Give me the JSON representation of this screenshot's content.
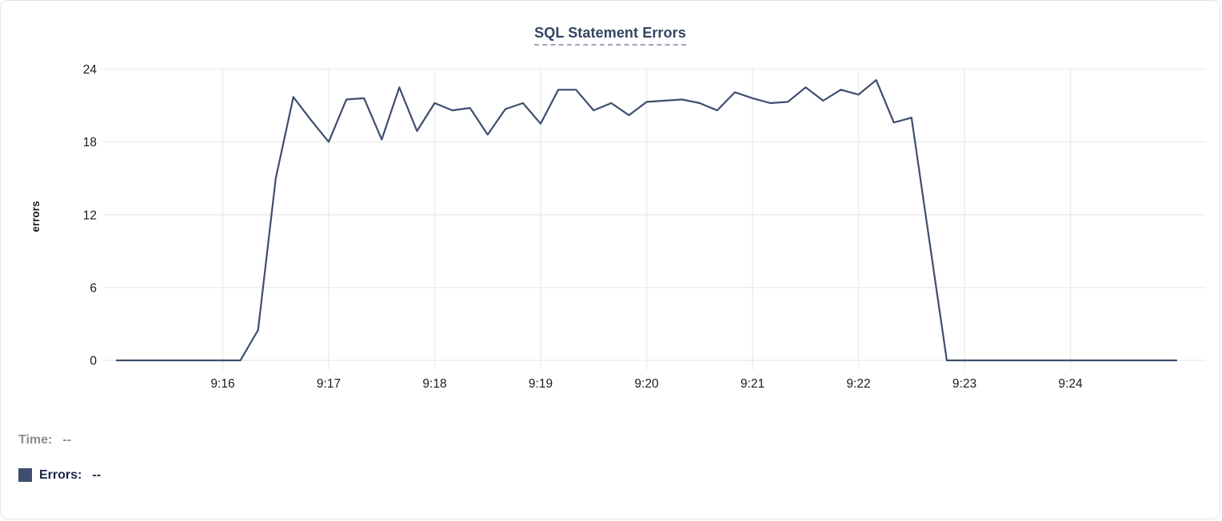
{
  "card": {
    "title": "SQL Statement Errors"
  },
  "tooltip": {
    "time_label": "Time:",
    "time_value": "--",
    "errors_label": "Errors:",
    "errors_value": "--"
  },
  "colors": {
    "line": "#3E4E6E",
    "title": "#344563",
    "title_underline": "#9AA5BA",
    "grid": "#ECECEC",
    "axis_text": "#1C1C1C",
    "tooltip_time": "#8D8D8D",
    "tooltip_errors": "#17264C",
    "card_border": "#E2E4E8",
    "background": "#FFFFFF"
  },
  "chart_data": {
    "type": "line",
    "title": "SQL Statement Errors",
    "xlabel": "",
    "ylabel": "errors",
    "ylim": [
      0,
      24
    ],
    "y_ticks": [
      0,
      6,
      12,
      18,
      24
    ],
    "x_tick_labels": [
      "9:16",
      "9:17",
      "9:18",
      "9:19",
      "9:20",
      "9:21",
      "9:22",
      "9:23",
      "9:24"
    ],
    "x_range": [
      "9:15:00",
      "9:25:00"
    ],
    "interval_seconds": 10,
    "grid": true,
    "legend_position": "bottom-left",
    "x": [
      "9:15:00",
      "9:15:10",
      "9:15:20",
      "9:15:30",
      "9:15:40",
      "9:15:50",
      "9:16:00",
      "9:16:10",
      "9:16:20",
      "9:16:30",
      "9:16:40",
      "9:16:50",
      "9:17:00",
      "9:17:10",
      "9:17:20",
      "9:17:30",
      "9:17:40",
      "9:17:50",
      "9:18:00",
      "9:18:10",
      "9:18:20",
      "9:18:30",
      "9:18:40",
      "9:18:50",
      "9:19:00",
      "9:19:10",
      "9:19:20",
      "9:19:30",
      "9:19:40",
      "9:19:50",
      "9:20:00",
      "9:20:10",
      "9:20:20",
      "9:20:30",
      "9:20:40",
      "9:20:50",
      "9:21:00",
      "9:21:10",
      "9:21:20",
      "9:21:30",
      "9:21:40",
      "9:21:50",
      "9:22:00",
      "9:22:10",
      "9:22:20",
      "9:22:30",
      "9:22:40",
      "9:22:50",
      "9:23:00",
      "9:23:10",
      "9:23:20",
      "9:23:30",
      "9:23:40",
      "9:23:50",
      "9:24:00",
      "9:24:10",
      "9:24:20",
      "9:24:30",
      "9:24:40",
      "9:24:50",
      "9:25:00"
    ],
    "series": [
      {
        "name": "Errors",
        "color": "#3E4E6E",
        "values": [
          0,
          0,
          0,
          0,
          0,
          0,
          0,
          0,
          2.5,
          15,
          21.7,
          19.8,
          18,
          21.5,
          21.6,
          18.2,
          22.5,
          18.9,
          21.2,
          20.6,
          20.8,
          18.6,
          20.7,
          21.2,
          19.5,
          22.3,
          22.3,
          20.6,
          21.2,
          20.2,
          21.3,
          21.4,
          21.5,
          21.2,
          20.6,
          22.1,
          21.6,
          21.2,
          21.3,
          22.5,
          21.4,
          22.3,
          21.9,
          23.1,
          19.6,
          20,
          10,
          0,
          0,
          0,
          0,
          0,
          0,
          0,
          0,
          0,
          0,
          0,
          0,
          0,
          0
        ]
      }
    ]
  }
}
